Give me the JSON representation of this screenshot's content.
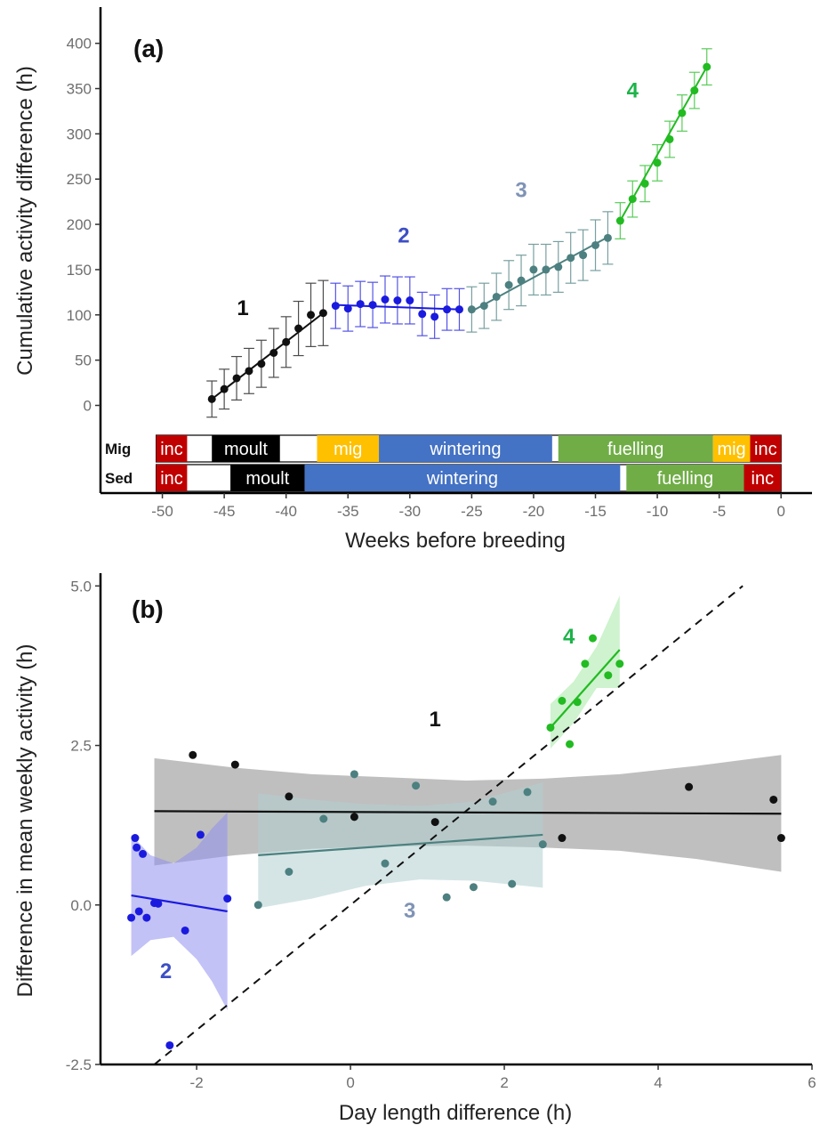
{
  "colors": {
    "group1": "#111111",
    "group2": "#1a1adf",
    "group3": "#4d8080",
    "group4": "#22bb22",
    "group1_label": "#111111",
    "group2_label": "#3d4fc4",
    "group3_label": "#7f93b5",
    "group4_label": "#1db34a",
    "band1": "#8a8a8a",
    "band2": "#8f8fee",
    "band3": "#b3cfcf",
    "band4": "#a6eaa6",
    "inc": "#c00000",
    "moult": "#000000",
    "mig": "#ffc000",
    "wintering": "#4472c4",
    "fuelling": "#70ad47"
  },
  "chart_data": [
    {
      "id": "a",
      "type": "line",
      "panel_label": "(a)",
      "xlabel": "Weeks before breeding",
      "ylabel": "Cumulative activity difference (h)",
      "xlim": [
        -55,
        2.5
      ],
      "ylim": [
        -30,
        440
      ],
      "xticks": [
        -50,
        -45,
        -40,
        -35,
        -30,
        -25,
        -20,
        -15,
        -10,
        -5,
        0
      ],
      "yticks": [
        0,
        50,
        100,
        150,
        200,
        250,
        300,
        350,
        400
      ],
      "grid": false,
      "series": [
        {
          "label": "1",
          "color_key": "group1",
          "label_pos": [
            -43.5,
            100
          ],
          "x": [
            -46,
            -45,
            -44,
            -43,
            -42,
            -41,
            -40,
            -39,
            -38,
            -37
          ],
          "y": [
            7,
            18,
            30,
            38,
            46,
            58,
            70,
            85,
            100,
            102
          ],
          "err": [
            20,
            22,
            24,
            25,
            26,
            27,
            28,
            30,
            35,
            36
          ],
          "fit": [
            [
              -46,
              7
            ],
            [
              -37,
              102
            ]
          ]
        },
        {
          "label": "2",
          "color_key": "group2",
          "label_pos": [
            -30.5,
            180
          ],
          "x": [
            -36,
            -35,
            -34,
            -33,
            -32,
            -31,
            -30,
            -29,
            -28,
            -27,
            -26
          ],
          "y": [
            110,
            107,
            112,
            111,
            117,
            116,
            116,
            101,
            98,
            106,
            106
          ],
          "err": [
            25,
            25,
            25,
            25,
            26,
            26,
            26,
            24,
            24,
            23,
            23
          ],
          "fit": [
            [
              -36,
              111
            ],
            [
              -26,
              106
            ]
          ]
        },
        {
          "label": "3",
          "color_key": "group3",
          "label_pos": [
            -21,
            230
          ],
          "x": [
            -25,
            -24,
            -23,
            -22,
            -21,
            -20,
            -19,
            -18,
            -17,
            -16,
            -15,
            -14
          ],
          "y": [
            106,
            110,
            120,
            133,
            138,
            150,
            150,
            153,
            163,
            166,
            177,
            185
          ],
          "err": [
            25,
            25,
            26,
            27,
            28,
            28,
            28,
            28,
            28,
            28,
            28,
            29
          ],
          "fit": [
            [
              -25,
              104
            ],
            [
              -14,
              186
            ]
          ]
        },
        {
          "label": "4",
          "color_key": "group4",
          "label_pos": [
            -12,
            340
          ],
          "x": [
            -13,
            -12,
            -11,
            -10,
            -9,
            -8,
            -7,
            -6
          ],
          "y": [
            204,
            228,
            245,
            268,
            294,
            323,
            348,
            374
          ],
          "err": [
            20,
            20,
            20,
            20,
            20,
            20,
            20,
            20
          ],
          "fit": [
            [
              -13,
              204
            ],
            [
              -6,
              374
            ]
          ]
        }
      ],
      "phase_bars": [
        {
          "row_label": "Mig",
          "segments": [
            {
              "label": "inc",
              "start": -50.5,
              "end": -48,
              "color_key": "inc"
            },
            {
              "label": "",
              "start": -48,
              "end": -46,
              "color_key": ""
            },
            {
              "label": "moult",
              "start": -46,
              "end": -40.5,
              "color_key": "moult"
            },
            {
              "label": "",
              "start": -40.5,
              "end": -37.5,
              "color_key": ""
            },
            {
              "label": "mig",
              "start": -37.5,
              "end": -32.5,
              "color_key": "mig"
            },
            {
              "label": "wintering",
              "start": -32.5,
              "end": -18.5,
              "color_key": "wintering"
            },
            {
              "label": "",
              "start": -18.5,
              "end": -18,
              "color_key": ""
            },
            {
              "label": "fuelling",
              "start": -18,
              "end": -5.5,
              "color_key": "fuelling"
            },
            {
              "label": "mig",
              "start": -5.5,
              "end": -2.5,
              "color_key": "mig"
            },
            {
              "label": "inc",
              "start": -2.5,
              "end": 0,
              "color_key": "inc"
            }
          ]
        },
        {
          "row_label": "Sed",
          "segments": [
            {
              "label": "inc",
              "start": -50.5,
              "end": -48,
              "color_key": "inc"
            },
            {
              "label": "",
              "start": -48,
              "end": -44.5,
              "color_key": ""
            },
            {
              "label": "moult",
              "start": -44.5,
              "end": -38.5,
              "color_key": "moult"
            },
            {
              "label": "wintering",
              "start": -38.5,
              "end": -13,
              "color_key": "wintering"
            },
            {
              "label": "",
              "start": -13,
              "end": -12.5,
              "color_key": ""
            },
            {
              "label": "fuelling",
              "start": -12.5,
              "end": -3,
              "color_key": "fuelling"
            },
            {
              "label": "inc",
              "start": -3,
              "end": 0,
              "color_key": "inc"
            }
          ]
        }
      ]
    },
    {
      "id": "b",
      "type": "scatter",
      "panel_label": "(b)",
      "xlabel": "Day length difference (h)",
      "ylabel": "Difference in mean weekly activity (h)",
      "xlim": [
        -3.25,
        6
      ],
      "ylim": [
        -2.5,
        5.2
      ],
      "xticks": [
        -2,
        0,
        2,
        4,
        6
      ],
      "yticks": [
        -2.5,
        0.0,
        2.5,
        5.0
      ],
      "ytick_labels": [
        "-2.5",
        "0.0",
        "2.5",
        "5.0"
      ],
      "grid": false,
      "reference_line": {
        "style": "dashed",
        "from": [
          -2.55,
          -2.5
        ],
        "to": [
          5.1,
          5.0
        ]
      },
      "series": [
        {
          "label": "1",
          "color_key": "group1",
          "band_key": "band1",
          "label_pos": [
            1.1,
            2.8
          ],
          "points": [
            [
              -2.05,
              2.35
            ],
            [
              -1.5,
              2.2
            ],
            [
              -0.8,
              1.7
            ],
            [
              0.05,
              1.38
            ],
            [
              1.1,
              1.3
            ],
            [
              2.75,
              1.05
            ],
            [
              4.4,
              1.85
            ],
            [
              5.5,
              1.65
            ],
            [
              5.6,
              1.05
            ]
          ],
          "fit": [
            [
              -2.55,
              1.47
            ],
            [
              5.6,
              1.43
            ]
          ],
          "band_upper": [
            [
              -2.55,
              2.3
            ],
            [
              -1.5,
              2.15
            ],
            [
              -0.5,
              2.05
            ],
            [
              0.5,
              2.0
            ],
            [
              1.5,
              1.95
            ],
            [
              2.5,
              1.98
            ],
            [
              3.5,
              2.05
            ],
            [
              4.5,
              2.18
            ],
            [
              5.6,
              2.35
            ]
          ],
          "band_lower": [
            [
              -2.55,
              0.62
            ],
            [
              -1.5,
              0.78
            ],
            [
              -0.5,
              0.88
            ],
            [
              0.5,
              0.92
            ],
            [
              1.5,
              0.93
            ],
            [
              2.5,
              0.9
            ],
            [
              3.5,
              0.85
            ],
            [
              4.5,
              0.72
            ],
            [
              5.6,
              0.52
            ]
          ]
        },
        {
          "label": "2",
          "color_key": "group2",
          "band_key": "band2",
          "label_pos": [
            -2.4,
            -1.15
          ],
          "points": [
            [
              -2.8,
              1.05
            ],
            [
              -2.78,
              0.9
            ],
            [
              -2.7,
              0.8
            ],
            [
              -1.95,
              1.1
            ],
            [
              -2.85,
              -0.2
            ],
            [
              -2.75,
              -0.1
            ],
            [
              -2.65,
              -0.2
            ],
            [
              -2.55,
              0.03
            ],
            [
              -2.5,
              0.02
            ],
            [
              -2.15,
              -0.4
            ],
            [
              -1.6,
              0.1
            ],
            [
              -2.35,
              -2.2
            ]
          ],
          "fit": [
            [
              -2.85,
              0.15
            ],
            [
              -1.6,
              -0.1
            ]
          ],
          "band_upper": [
            [
              -2.85,
              1.1
            ],
            [
              -2.6,
              0.78
            ],
            [
              -2.3,
              0.65
            ],
            [
              -2.0,
              0.9
            ],
            [
              -1.8,
              1.2
            ],
            [
              -1.6,
              1.45
            ]
          ],
          "band_lower": [
            [
              -2.85,
              -0.8
            ],
            [
              -2.6,
              -0.55
            ],
            [
              -2.3,
              -0.5
            ],
            [
              -2.0,
              -0.85
            ],
            [
              -1.8,
              -1.2
            ],
            [
              -1.6,
              -1.65
            ]
          ]
        },
        {
          "label": "3",
          "color_key": "group3",
          "band_key": "band3",
          "label_pos": [
            0.77,
            -0.2
          ],
          "points": [
            [
              -1.2,
              0.0
            ],
            [
              -0.8,
              0.52
            ],
            [
              -0.35,
              1.35
            ],
            [
              0.05,
              2.05
            ],
            [
              0.45,
              0.65
            ],
            [
              0.85,
              1.87
            ],
            [
              1.25,
              0.12
            ],
            [
              1.6,
              0.28
            ],
            [
              1.85,
              1.62
            ],
            [
              2.1,
              0.33
            ],
            [
              2.3,
              1.77
            ],
            [
              2.5,
              0.95
            ]
          ],
          "fit": [
            [
              -1.2,
              0.78
            ],
            [
              2.5,
              1.1
            ]
          ],
          "band_upper": [
            [
              -1.2,
              1.75
            ],
            [
              -0.5,
              1.65
            ],
            [
              0.2,
              1.58
            ],
            [
              0.9,
              1.55
            ],
            [
              1.6,
              1.62
            ],
            [
              2.5,
              1.92
            ]
          ],
          "band_lower": [
            [
              -1.2,
              -0.05
            ],
            [
              -0.5,
              0.1
            ],
            [
              0.2,
              0.3
            ],
            [
              0.9,
              0.4
            ],
            [
              1.6,
              0.38
            ],
            [
              2.5,
              0.27
            ]
          ]
        },
        {
          "label": "4",
          "color_key": "group4",
          "band_key": "band4",
          "label_pos": [
            2.84,
            4.1
          ],
          "points": [
            [
              2.6,
              2.78
            ],
            [
              2.75,
              3.2
            ],
            [
              2.85,
              2.52
            ],
            [
              2.95,
              3.18
            ],
            [
              3.05,
              3.78
            ],
            [
              3.15,
              4.18
            ],
            [
              3.35,
              3.6
            ],
            [
              3.5,
              3.78
            ]
          ],
          "fit": [
            [
              2.6,
              2.78
            ],
            [
              3.5,
              4.0
            ]
          ],
          "band_upper": [
            [
              2.6,
              3.15
            ],
            [
              2.9,
              3.5
            ],
            [
              3.2,
              4.05
            ],
            [
              3.5,
              4.85
            ]
          ],
          "band_lower": [
            [
              2.6,
              2.45
            ],
            [
              2.9,
              2.85
            ],
            [
              3.2,
              3.4
            ],
            [
              3.5,
              3.4
            ]
          ]
        }
      ]
    }
  ]
}
